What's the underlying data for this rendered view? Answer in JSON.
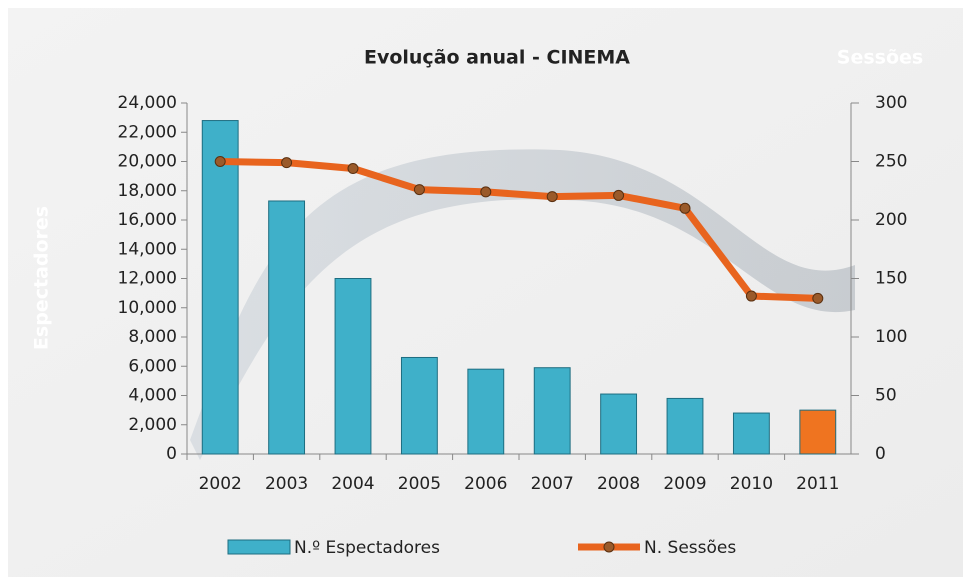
{
  "chart_data": {
    "type": "bar-line",
    "title": "Evolução anual - CINEMA",
    "y_label": "Espectadores",
    "y2_label": "Sessões",
    "categories": [
      "2002",
      "2003",
      "2004",
      "2005",
      "2006",
      "2007",
      "2008",
      "2009",
      "2010",
      "2011"
    ],
    "series": [
      {
        "name": "N.º Espectadores",
        "type": "bar",
        "color": "#3fb0c9",
        "colors": [
          "#3fb0c9",
          "#3fb0c9",
          "#3fb0c9",
          "#3fb0c9",
          "#3fb0c9",
          "#3fb0c9",
          "#3fb0c9",
          "#3fb0c9",
          "#3fb0c9",
          "#ef7420"
        ],
        "values": [
          22800,
          17300,
          12000,
          6600,
          5800,
          5900,
          4100,
          3800,
          2800,
          3000
        ]
      },
      {
        "name": "N. Sessões",
        "type": "line",
        "axis": "y2",
        "color": "#e8641e",
        "values": [
          250,
          249,
          244,
          226,
          224,
          220,
          221,
          210,
          135,
          133
        ]
      }
    ],
    "ylim": [
      0,
      24000
    ],
    "yticks": [
      0,
      {
        "value": 2000,
        "label": "2,000"
      },
      {
        "value": 4000,
        "label": "4,000"
      },
      {
        "value": 6000,
        "label": "6,000"
      },
      {
        "value": 8000,
        "label": "8,000"
      },
      {
        "value": 10000,
        "label": "10,000"
      },
      {
        "value": 12000,
        "label": "12,000"
      },
      {
        "value": 14000,
        "label": "14,000"
      },
      {
        "value": 16000,
        "label": "16,000"
      },
      {
        "value": 18000,
        "label": "18,000"
      },
      {
        "value": 20000,
        "label": "20,000"
      },
      {
        "value": 22000,
        "label": "22,000"
      },
      {
        "value": 24000,
        "label": "24,000"
      }
    ],
    "y2lim": [
      0,
      300
    ],
    "y2ticks": [
      0,
      50,
      100,
      150,
      200,
      250,
      300
    ],
    "legend": "bottom"
  }
}
